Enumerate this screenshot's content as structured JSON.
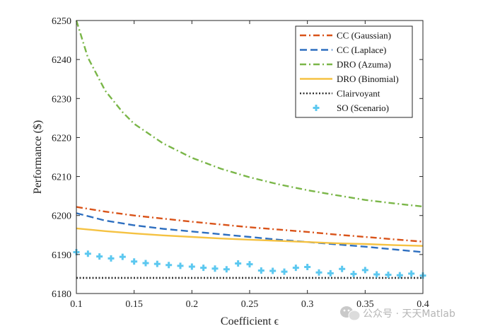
{
  "chart_data": {
    "type": "line",
    "xlabel": "Coefficient ϵ",
    "ylabel": "Performance ($)",
    "xlim": [
      0.1,
      0.4
    ],
    "ylim": [
      6180,
      6250
    ],
    "xticks": [
      0.1,
      0.15,
      0.2,
      0.25,
      0.3,
      0.35,
      0.4
    ],
    "xtick_labels": [
      "0.1",
      "0.15",
      "0.2",
      "0.25",
      "0.3",
      "0.35",
      "0.4"
    ],
    "yticks": [
      6180,
      6190,
      6200,
      6210,
      6220,
      6230,
      6240,
      6250
    ],
    "ytick_labels": [
      "6180",
      "6190",
      "6200",
      "6210",
      "6220",
      "6230",
      "6240",
      "6250"
    ],
    "grid": false,
    "legend_position": "top-right",
    "series": [
      {
        "name": "CC (Gaussian)",
        "style": "dashdot",
        "color": "#D95319",
        "x": [
          0.1,
          0.125,
          0.15,
          0.175,
          0.2,
          0.225,
          0.25,
          0.275,
          0.3,
          0.325,
          0.35,
          0.375,
          0.4
        ],
        "y": [
          6202.2,
          6201.0,
          6200.0,
          6199.2,
          6198.4,
          6197.7,
          6197.0,
          6196.4,
          6195.8,
          6195.1,
          6194.5,
          6193.9,
          6193.3
        ]
      },
      {
        "name": "CC (Laplace)",
        "style": "dashed",
        "color": "#2E6FC0",
        "x": [
          0.1,
          0.125,
          0.15,
          0.175,
          0.2,
          0.225,
          0.25,
          0.275,
          0.3,
          0.325,
          0.35,
          0.375,
          0.4
        ],
        "y": [
          6200.6,
          6198.7,
          6197.5,
          6196.6,
          6195.9,
          6195.2,
          6194.5,
          6193.8,
          6193.2,
          6192.6,
          6192.0,
          6191.3,
          6190.6
        ]
      },
      {
        "name": "DRO (Azuma)",
        "style": "dashdot",
        "color": "#7AB648",
        "x": [
          0.1,
          0.11,
          0.125,
          0.14,
          0.15,
          0.175,
          0.2,
          0.225,
          0.25,
          0.275,
          0.3,
          0.325,
          0.35,
          0.375,
          0.4
        ],
        "y": [
          6250.0,
          6240.5,
          6232.0,
          6226.5,
          6223.5,
          6218.5,
          6214.8,
          6212.0,
          6209.8,
          6208.0,
          6206.5,
          6205.2,
          6204.0,
          6203.1,
          6202.3
        ]
      },
      {
        "name": "DRO (Binomial)",
        "style": "solid",
        "color": "#F5C242",
        "x": [
          0.1,
          0.125,
          0.15,
          0.175,
          0.2,
          0.225,
          0.25,
          0.275,
          0.3,
          0.325,
          0.35,
          0.375,
          0.4
        ],
        "y": [
          6196.7,
          6196.0,
          6195.4,
          6194.9,
          6194.5,
          6194.1,
          6193.8,
          6193.5,
          6193.2,
          6192.9,
          6192.7,
          6192.4,
          6192.2
        ]
      },
      {
        "name": "Clairvoyant",
        "style": "dotted",
        "color": "#333333",
        "x": [
          0.1,
          0.4
        ],
        "y": [
          6184.0,
          6184.0
        ]
      },
      {
        "name": "SO (Scenario)",
        "style": "markers-plus",
        "color": "#5CC8F0",
        "x": [
          0.1,
          0.11,
          0.12,
          0.13,
          0.14,
          0.15,
          0.16,
          0.17,
          0.18,
          0.19,
          0.2,
          0.21,
          0.22,
          0.23,
          0.24,
          0.25,
          0.26,
          0.27,
          0.28,
          0.29,
          0.3,
          0.31,
          0.32,
          0.33,
          0.34,
          0.35,
          0.36,
          0.37,
          0.38,
          0.39,
          0.4
        ],
        "y": [
          6190.6,
          6190.2,
          6189.5,
          6189.0,
          6189.4,
          6188.2,
          6187.8,
          6187.6,
          6187.3,
          6187.1,
          6186.9,
          6186.6,
          6186.4,
          6186.2,
          6187.7,
          6187.5,
          6185.9,
          6185.8,
          6185.6,
          6186.6,
          6186.8,
          6185.4,
          6185.2,
          6186.3,
          6185.0,
          6186.0,
          6184.9,
          6184.8,
          6184.7,
          6185.1,
          6184.6
        ]
      }
    ]
  },
  "watermark": {
    "icon": "wechat-icon",
    "text": "公众号 · 天天Matlab"
  }
}
